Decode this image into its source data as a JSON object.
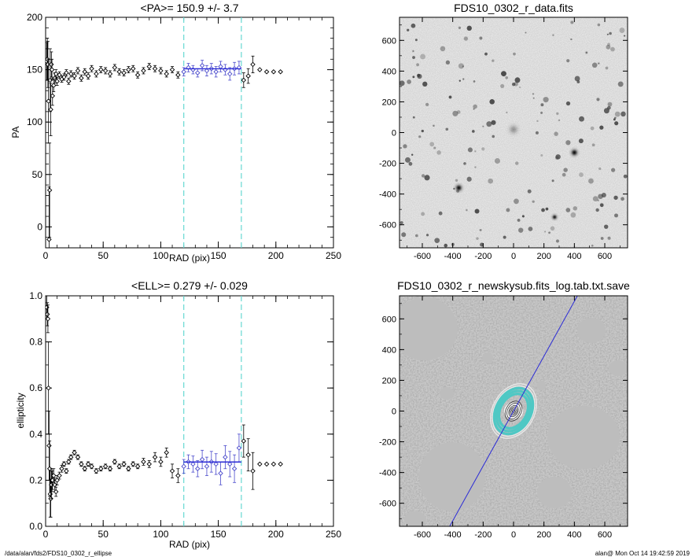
{
  "footer": {
    "path": "/data/alan/fds2/FDS10_0302_r_ellipse",
    "stamp": "alan@  Mon Oct 14 19:42:59 2019"
  },
  "colors": {
    "fit_line": "#2b2bd6",
    "fit_markers": "#4a4acc",
    "range_lines": "#66d9d2",
    "cyan_ellipses": "#4fc8c4"
  },
  "chart_data": [
    {
      "type": "scatter",
      "title": "<PA>= 150.9 +/-   3.7",
      "xlabel": "RAD (pix)",
      "ylabel": "PA",
      "xlim": [
        0,
        250
      ],
      "ylim": [
        -20,
        200
      ],
      "xticks": [
        0,
        50,
        100,
        150,
        200,
        250
      ],
      "yticks": [
        0,
        50,
        100,
        150,
        200
      ],
      "fit_range": [
        120,
        170
      ],
      "mean": 150.9,
      "mean_error": 3.7,
      "series": [
        {
          "x": [
            1,
            1.5,
            2,
            2.5,
            3,
            3.5,
            4,
            4.5,
            5,
            5.5,
            6,
            7,
            8,
            9,
            10,
            12,
            14,
            16,
            18,
            20,
            22,
            25,
            28,
            31,
            34,
            37,
            40,
            44,
            48,
            52,
            56,
            60,
            64,
            68,
            72,
            76,
            80,
            85,
            90,
            95,
            100,
            105,
            110,
            115,
            120,
            124,
            128,
            132,
            136,
            140,
            144,
            148,
            152,
            156,
            160,
            164,
            168,
            172,
            176,
            180,
            186,
            192,
            198,
            204
          ],
          "y": [
            158,
            160,
            155,
            120,
            -12,
            35,
            140,
            112,
            155,
            150,
            125,
            135,
            142,
            146,
            139,
            145,
            141,
            143,
            147,
            139,
            146,
            144,
            149,
            142,
            148,
            144,
            151,
            146,
            150,
            149,
            146,
            152,
            148,
            147,
            150,
            151,
            145,
            149,
            153,
            151,
            149,
            146,
            150,
            145,
            148,
            152,
            150,
            147,
            154,
            149,
            151,
            148,
            153,
            150,
            146,
            151,
            152,
            140,
            144,
            155,
            150,
            148,
            148,
            148
          ],
          "err": [
            18,
            20,
            22,
            40,
            50,
            45,
            30,
            25,
            12,
            10,
            9,
            6,
            5,
            4,
            4,
            3,
            3,
            3,
            3,
            3,
            3,
            3,
            3,
            3,
            3,
            3,
            3,
            3,
            3,
            3,
            3,
            3,
            3,
            3,
            3,
            3,
            3,
            3,
            3,
            3,
            3,
            3,
            3,
            3,
            4,
            4,
            4,
            4,
            5,
            5,
            5,
            5,
            5,
            5,
            6,
            6,
            6,
            7,
            7,
            8,
            0,
            0,
            0,
            0
          ]
        }
      ]
    },
    {
      "type": "scatter",
      "title": "<ELL>= 0.279 +/-  0.029",
      "xlabel": "RAD (pix)",
      "ylabel": "ellipticity",
      "xlim": [
        0,
        250
      ],
      "ylim": [
        0,
        1
      ],
      "xticks": [
        0,
        50,
        100,
        150,
        200,
        250
      ],
      "yticks": [
        0.0,
        0.2,
        0.4,
        0.6,
        0.8,
        1.0
      ],
      "fit_range": [
        120,
        170
      ],
      "mean": 0.279,
      "mean_error": 0.029,
      "series": [
        {
          "x": [
            1,
            1.5,
            2,
            2.5,
            3,
            3.5,
            4,
            4.5,
            5,
            5.5,
            6,
            7,
            8,
            9,
            10,
            12,
            14,
            16,
            18,
            20,
            22,
            25,
            28,
            31,
            34,
            37,
            40,
            44,
            48,
            52,
            56,
            60,
            64,
            68,
            72,
            76,
            80,
            85,
            90,
            95,
            100,
            105,
            110,
            115,
            120,
            124,
            128,
            132,
            136,
            140,
            144,
            148,
            152,
            156,
            160,
            164,
            168,
            172,
            176,
            180,
            186,
            192,
            198,
            204
          ],
          "y": [
            0.95,
            0.92,
            0.9,
            0.6,
            0.35,
            0.25,
            0.14,
            0.12,
            0.18,
            0.2,
            0.2,
            0.22,
            0.18,
            0.15,
            0.2,
            0.22,
            0.25,
            0.27,
            0.24,
            0.28,
            0.3,
            0.32,
            0.3,
            0.27,
            0.25,
            0.27,
            0.26,
            0.24,
            0.25,
            0.26,
            0.25,
            0.28,
            0.26,
            0.27,
            0.25,
            0.27,
            0.26,
            0.28,
            0.27,
            0.3,
            0.28,
            0.32,
            0.24,
            0.22,
            0.26,
            0.28,
            0.27,
            0.25,
            0.29,
            0.26,
            0.28,
            0.27,
            0.23,
            0.3,
            0.27,
            0.25,
            0.34,
            0.37,
            0.31,
            0.24,
            0.27,
            0.27,
            0.27,
            0.27
          ],
          "err": [
            0.05,
            0.05,
            0.06,
            0.2,
            0.15,
            0.12,
            0.1,
            0.08,
            0.06,
            0.05,
            0.04,
            0.03,
            0.03,
            0.02,
            0.02,
            0.015,
            0.015,
            0.01,
            0.01,
            0.01,
            0.01,
            0.01,
            0.01,
            0.01,
            0.01,
            0.01,
            0.01,
            0.01,
            0.01,
            0.01,
            0.01,
            0.01,
            0.01,
            0.01,
            0.01,
            0.01,
            0.01,
            0.015,
            0.015,
            0.02,
            0.02,
            0.02,
            0.03,
            0.03,
            0.03,
            0.03,
            0.035,
            0.035,
            0.04,
            0.04,
            0.045,
            0.045,
            0.05,
            0.05,
            0.055,
            0.06,
            0.06,
            0.07,
            0.07,
            0.08,
            0,
            0,
            0,
            0
          ]
        }
      ]
    },
    {
      "type": "heatmap",
      "title": "FDS10_0302_r_data.fits",
      "xlim": [
        -750,
        750
      ],
      "ylim": [
        -750,
        750
      ],
      "xticks": [
        -600,
        -400,
        -200,
        0,
        200,
        400,
        600
      ],
      "yticks": [
        -600,
        -400,
        -200,
        0,
        200,
        400,
        600
      ],
      "sources": [
        {
          "x": 0,
          "y": 20,
          "r": 55,
          "peak": 0.35
        },
        {
          "x": -360,
          "y": -360,
          "r": 40,
          "peak": 1.0
        },
        {
          "x": 400,
          "y": -130,
          "r": 40,
          "peak": 1.0
        },
        {
          "x": 270,
          "y": -550,
          "r": 30,
          "peak": 0.95
        },
        {
          "x": 480,
          "y": 520,
          "r": 14,
          "peak": 0.7
        },
        {
          "x": -660,
          "y": 530,
          "r": 12,
          "peak": 0.6
        },
        {
          "x": 560,
          "y": 450,
          "r": 12,
          "peak": 0.6
        },
        {
          "x": 300,
          "y": 80,
          "r": 10,
          "peak": 0.6
        },
        {
          "x": -200,
          "y": 40,
          "r": 10,
          "peak": 0.55
        },
        {
          "x": 80,
          "y": 650,
          "r": 10,
          "peak": 0.55
        }
      ]
    },
    {
      "type": "heatmap",
      "title": "FDS10_0302_r_newskysub.fits_log.tab.txt.save",
      "xlim": [
        -750,
        750
      ],
      "ylim": [
        -750,
        750
      ],
      "xticks": [
        -600,
        -400,
        -200,
        0,
        200,
        400,
        600
      ],
      "yticks": [
        -600,
        -400,
        -200,
        0,
        200,
        400,
        600
      ],
      "line": {
        "x": [
          -420,
          420
        ],
        "y": [
          -750,
          750
        ]
      },
      "ellipses": {
        "pa": 150.9,
        "ell": 0.279,
        "inner_radii": [
          10,
          20,
          30,
          40,
          55,
          70
        ],
        "fit_radii": [
          120,
          140,
          160
        ],
        "outer_radii": [
          175,
          190
        ]
      }
    }
  ]
}
